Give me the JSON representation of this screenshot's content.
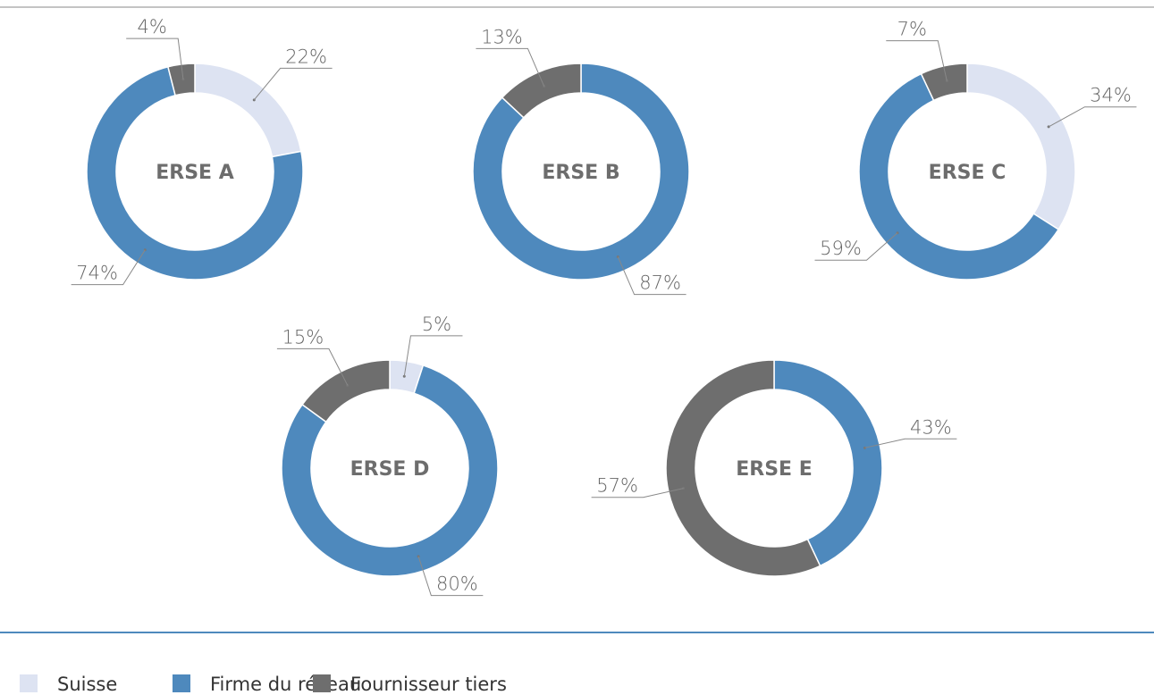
{
  "legend": {
    "items": [
      {
        "name": "Suisse",
        "color": "#dde3f2"
      },
      {
        "name": "Firme du réseau",
        "color": "#4e89bd"
      },
      {
        "name": "Fournisseur tiers",
        "color": "#6e6e6e"
      }
    ]
  },
  "chart_data": [
    {
      "type": "donut",
      "title": "ERSE A",
      "values": [
        22,
        74,
        4
      ],
      "value_labels": [
        "22%",
        "74%",
        "4%"
      ]
    },
    {
      "type": "donut",
      "title": "ERSE B",
      "values": [
        null,
        87,
        13
      ],
      "value_labels": [
        null,
        "87%",
        "13%"
      ]
    },
    {
      "type": "donut",
      "title": "ERSE C",
      "values": [
        34,
        59,
        7
      ],
      "value_labels": [
        "34%",
        "59%",
        "7%"
      ]
    },
    {
      "type": "donut",
      "title": "ERSE D",
      "values": [
        5,
        80,
        15
      ],
      "value_labels": [
        "5%",
        "80%",
        "15%"
      ]
    },
    {
      "type": "donut",
      "title": "ERSE E",
      "values": [
        null,
        43,
        57
      ],
      "value_labels": [
        null,
        "43%",
        "57%"
      ]
    }
  ]
}
